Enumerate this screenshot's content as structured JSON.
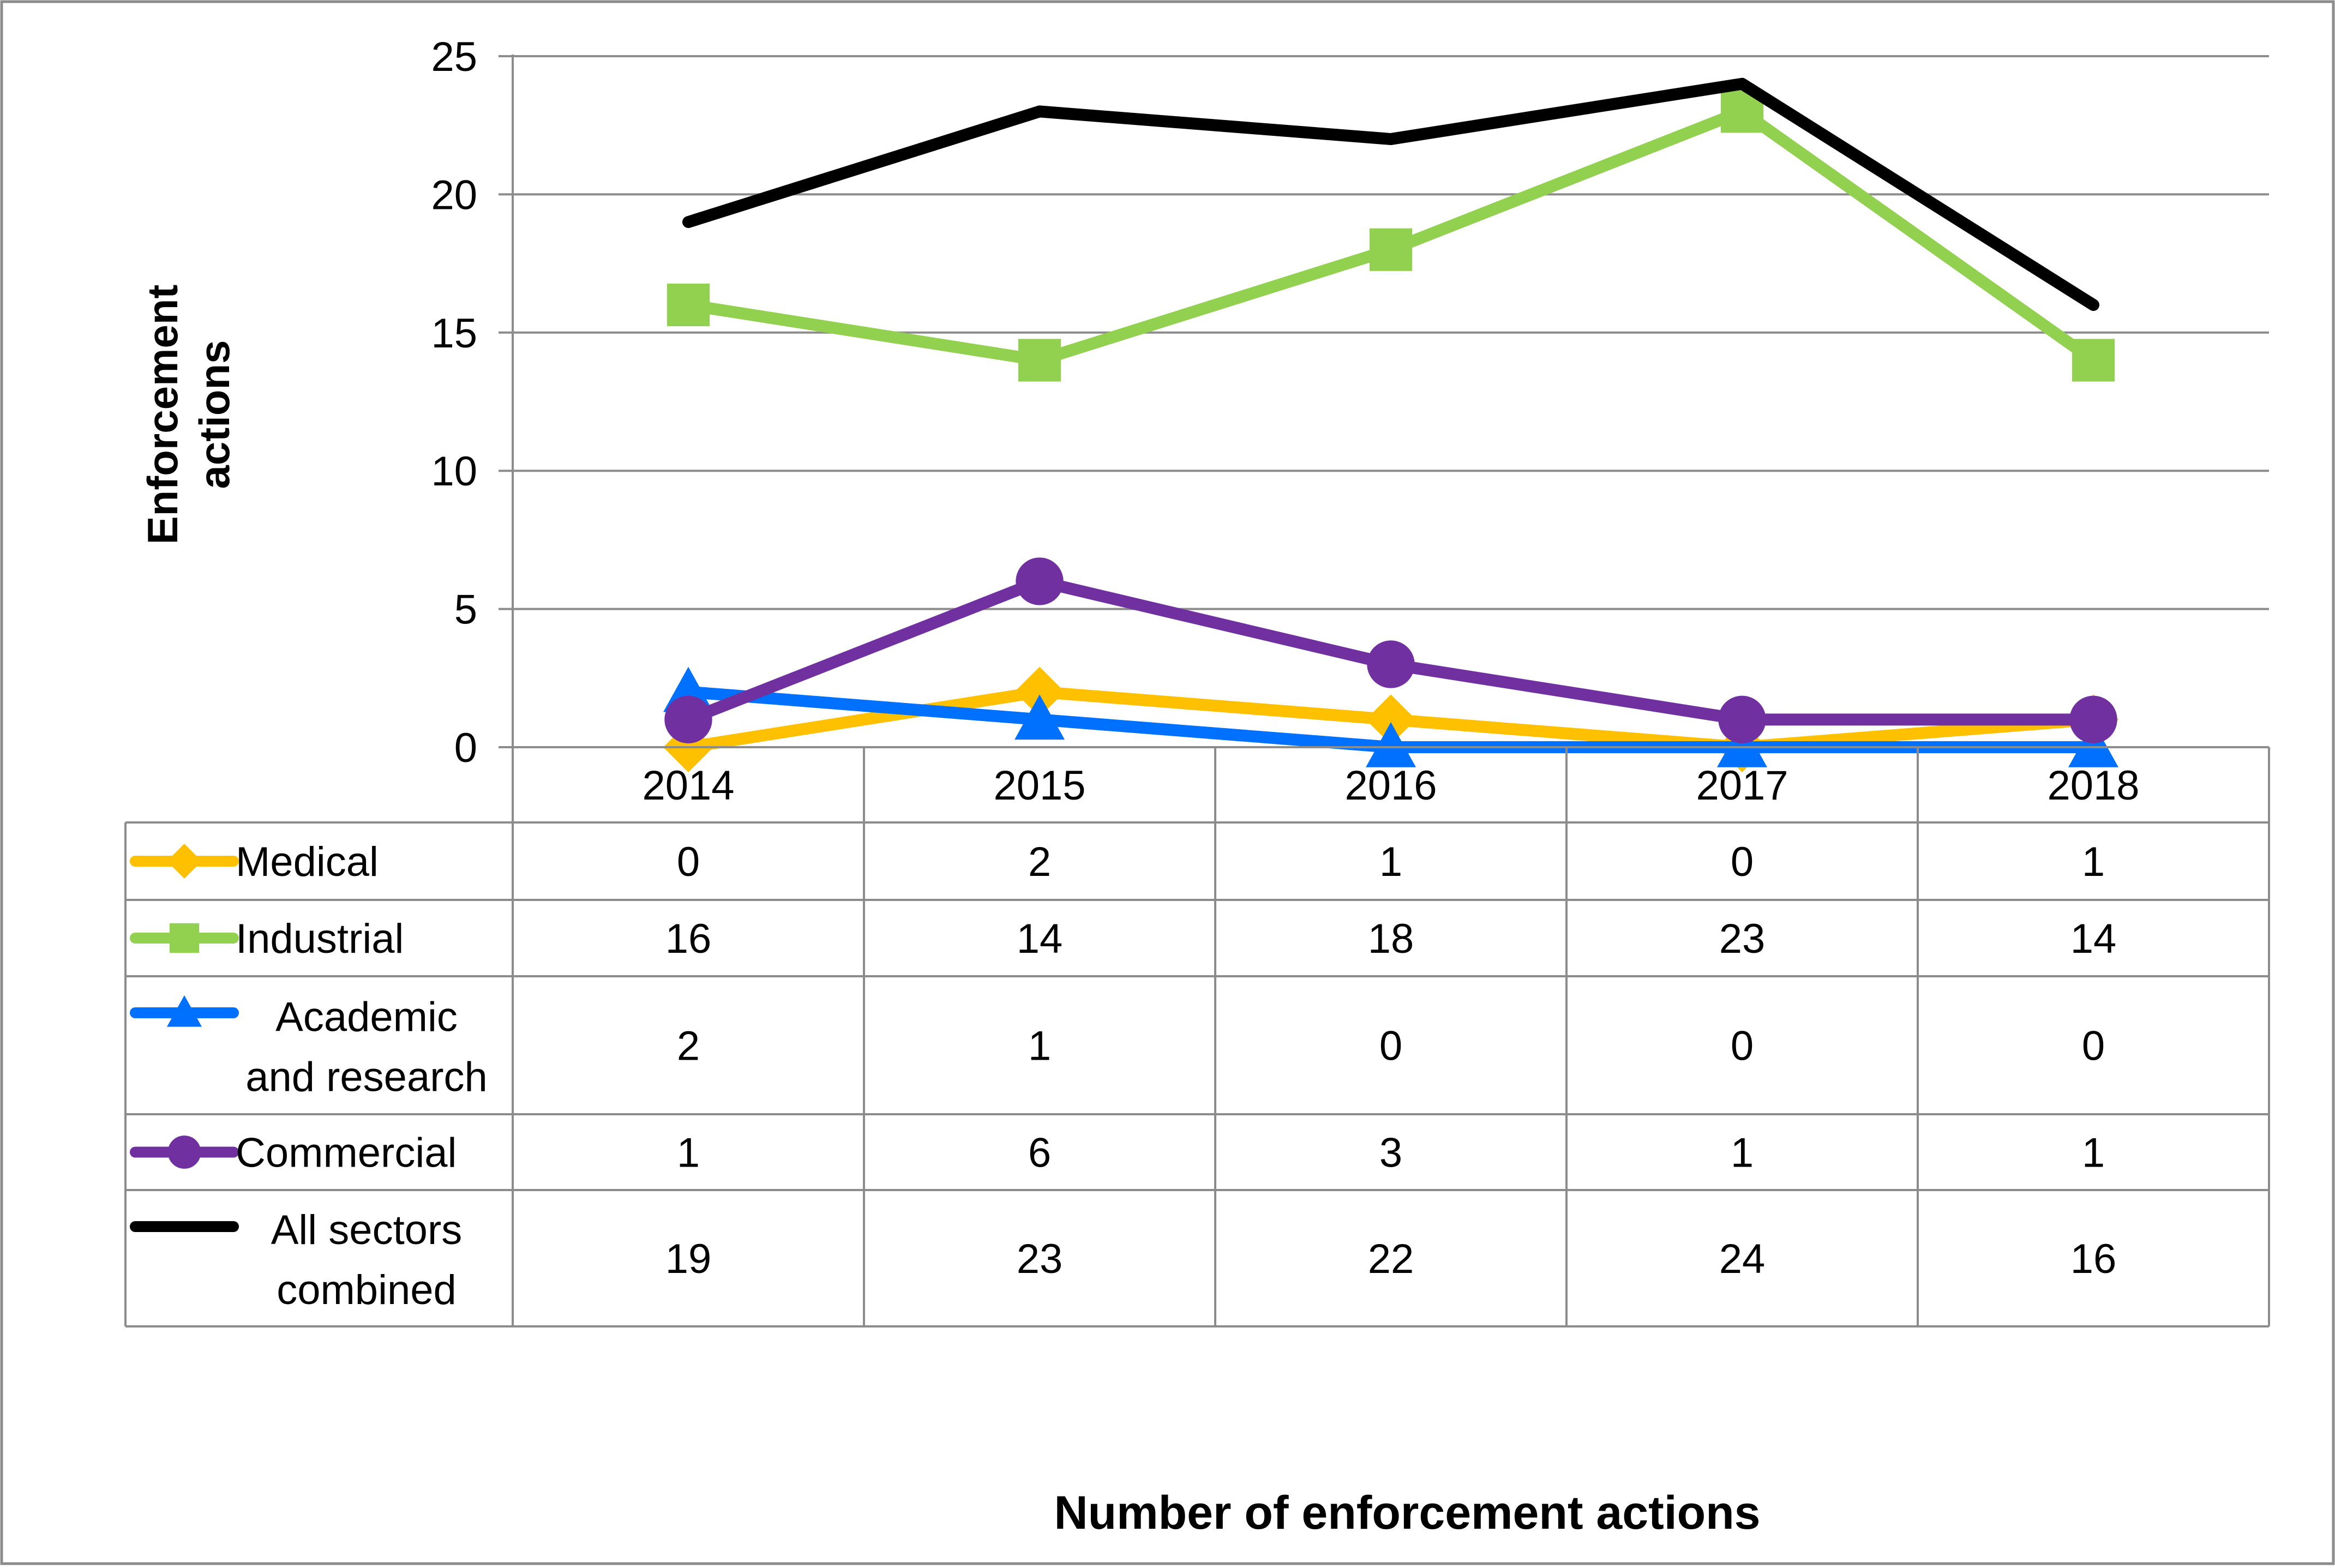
{
  "chart_data": {
    "type": "line",
    "title": "",
    "xlabel": "Number of enforcement actions",
    "ylabel": "Enforcement actions",
    "categories": [
      "2014",
      "2015",
      "2016",
      "2017",
      "2018"
    ],
    "ylim": [
      0,
      25
    ],
    "yticks": [
      0,
      5,
      10,
      15,
      20,
      25
    ],
    "grid": true,
    "legend": "data-table",
    "series": [
      {
        "name": "Medical",
        "values": [
          0,
          2,
          1,
          0,
          1
        ],
        "color": "#ffc000",
        "marker": "diamond"
      },
      {
        "name": "Industrial",
        "values": [
          16,
          14,
          18,
          23,
          14
        ],
        "color": "#92d050",
        "marker": "square"
      },
      {
        "name": "Academic and research",
        "values": [
          2,
          1,
          0,
          0,
          0
        ],
        "color": "#0070ff",
        "marker": "triangle"
      },
      {
        "name": "Commercial",
        "values": [
          1,
          6,
          3,
          1,
          1
        ],
        "color": "#7030a0",
        "marker": "circle"
      },
      {
        "name": "All sectors combined",
        "values": [
          19,
          23,
          22,
          24,
          16
        ],
        "color": "#000000",
        "marker": "none"
      }
    ]
  }
}
